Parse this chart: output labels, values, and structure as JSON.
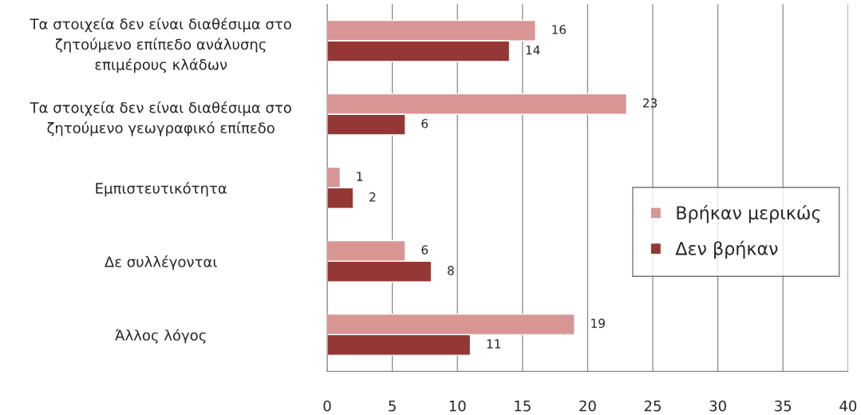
{
  "chart_data": {
    "type": "bar",
    "orientation": "horizontal",
    "categories": [
      "Τα στοιχεία δεν είναι διαθέσιμα στο\nζητούμενο επίπεδο ανάλυσης\nεπιμέρους κλάδων",
      "Τα στοιχεία δεν είναι διαθέσιμα στο\nζητούμενο γεωγραφικό επίπεδο",
      "Εμπιστευτικότητα",
      "Δε συλλέγονται",
      "Άλλος λόγος"
    ],
    "series": [
      {
        "name": "Βρήκαν μερικώς",
        "color": "#d99594",
        "values": [
          16,
          23,
          1,
          6,
          19
        ]
      },
      {
        "name": "Δεν βρήκαν",
        "color": "#953735",
        "values": [
          14,
          6,
          2,
          8,
          11
        ]
      }
    ],
    "xlim": [
      0,
      40
    ],
    "xticks": [
      0,
      5,
      10,
      15,
      20,
      25,
      30,
      35,
      40
    ],
    "grid": "x",
    "legend": "right",
    "data_labels": true
  }
}
